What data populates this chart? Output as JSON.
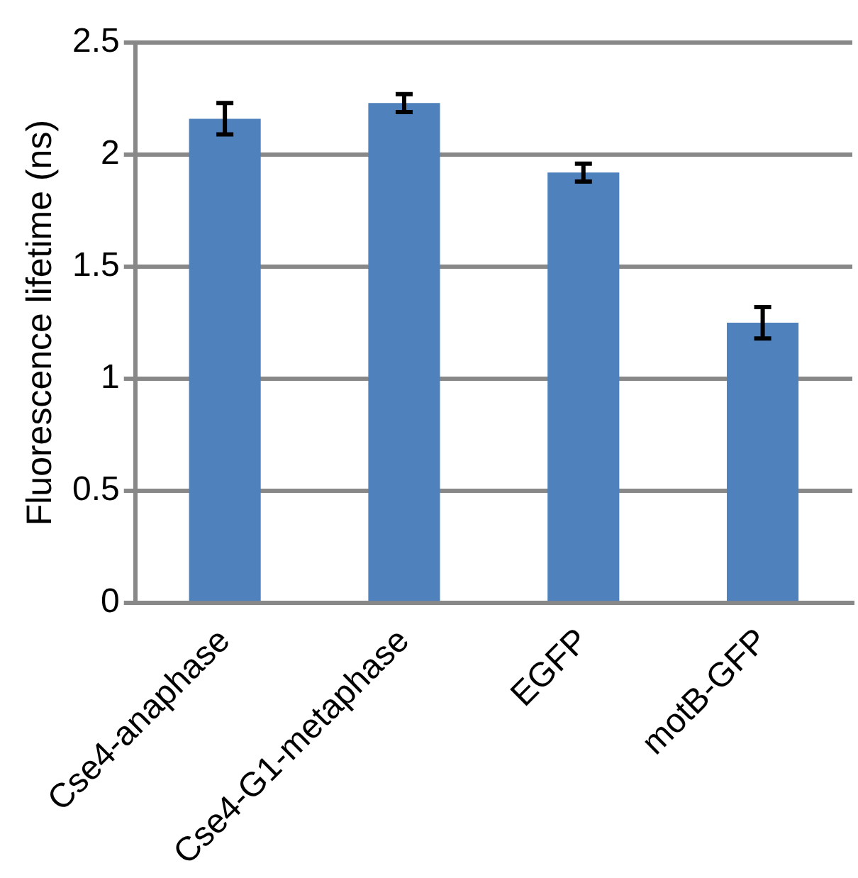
{
  "chart_data": {
    "type": "bar",
    "ylabel": "Fluorescence lifetime (ns)",
    "categories": [
      "Cse4-anaphase",
      "Cse4-G1-metaphase",
      "EGFP",
      "motB-GFP"
    ],
    "values": [
      2.16,
      2.23,
      1.92,
      1.25
    ],
    "errors": [
      0.07,
      0.04,
      0.04,
      0.07
    ],
    "color": "#4f81bd",
    "ylim": [
      0,
      2.5
    ],
    "yticks": [
      0,
      0.5,
      1,
      1.5,
      2,
      2.5
    ],
    "grid": "y",
    "legend": false
  }
}
